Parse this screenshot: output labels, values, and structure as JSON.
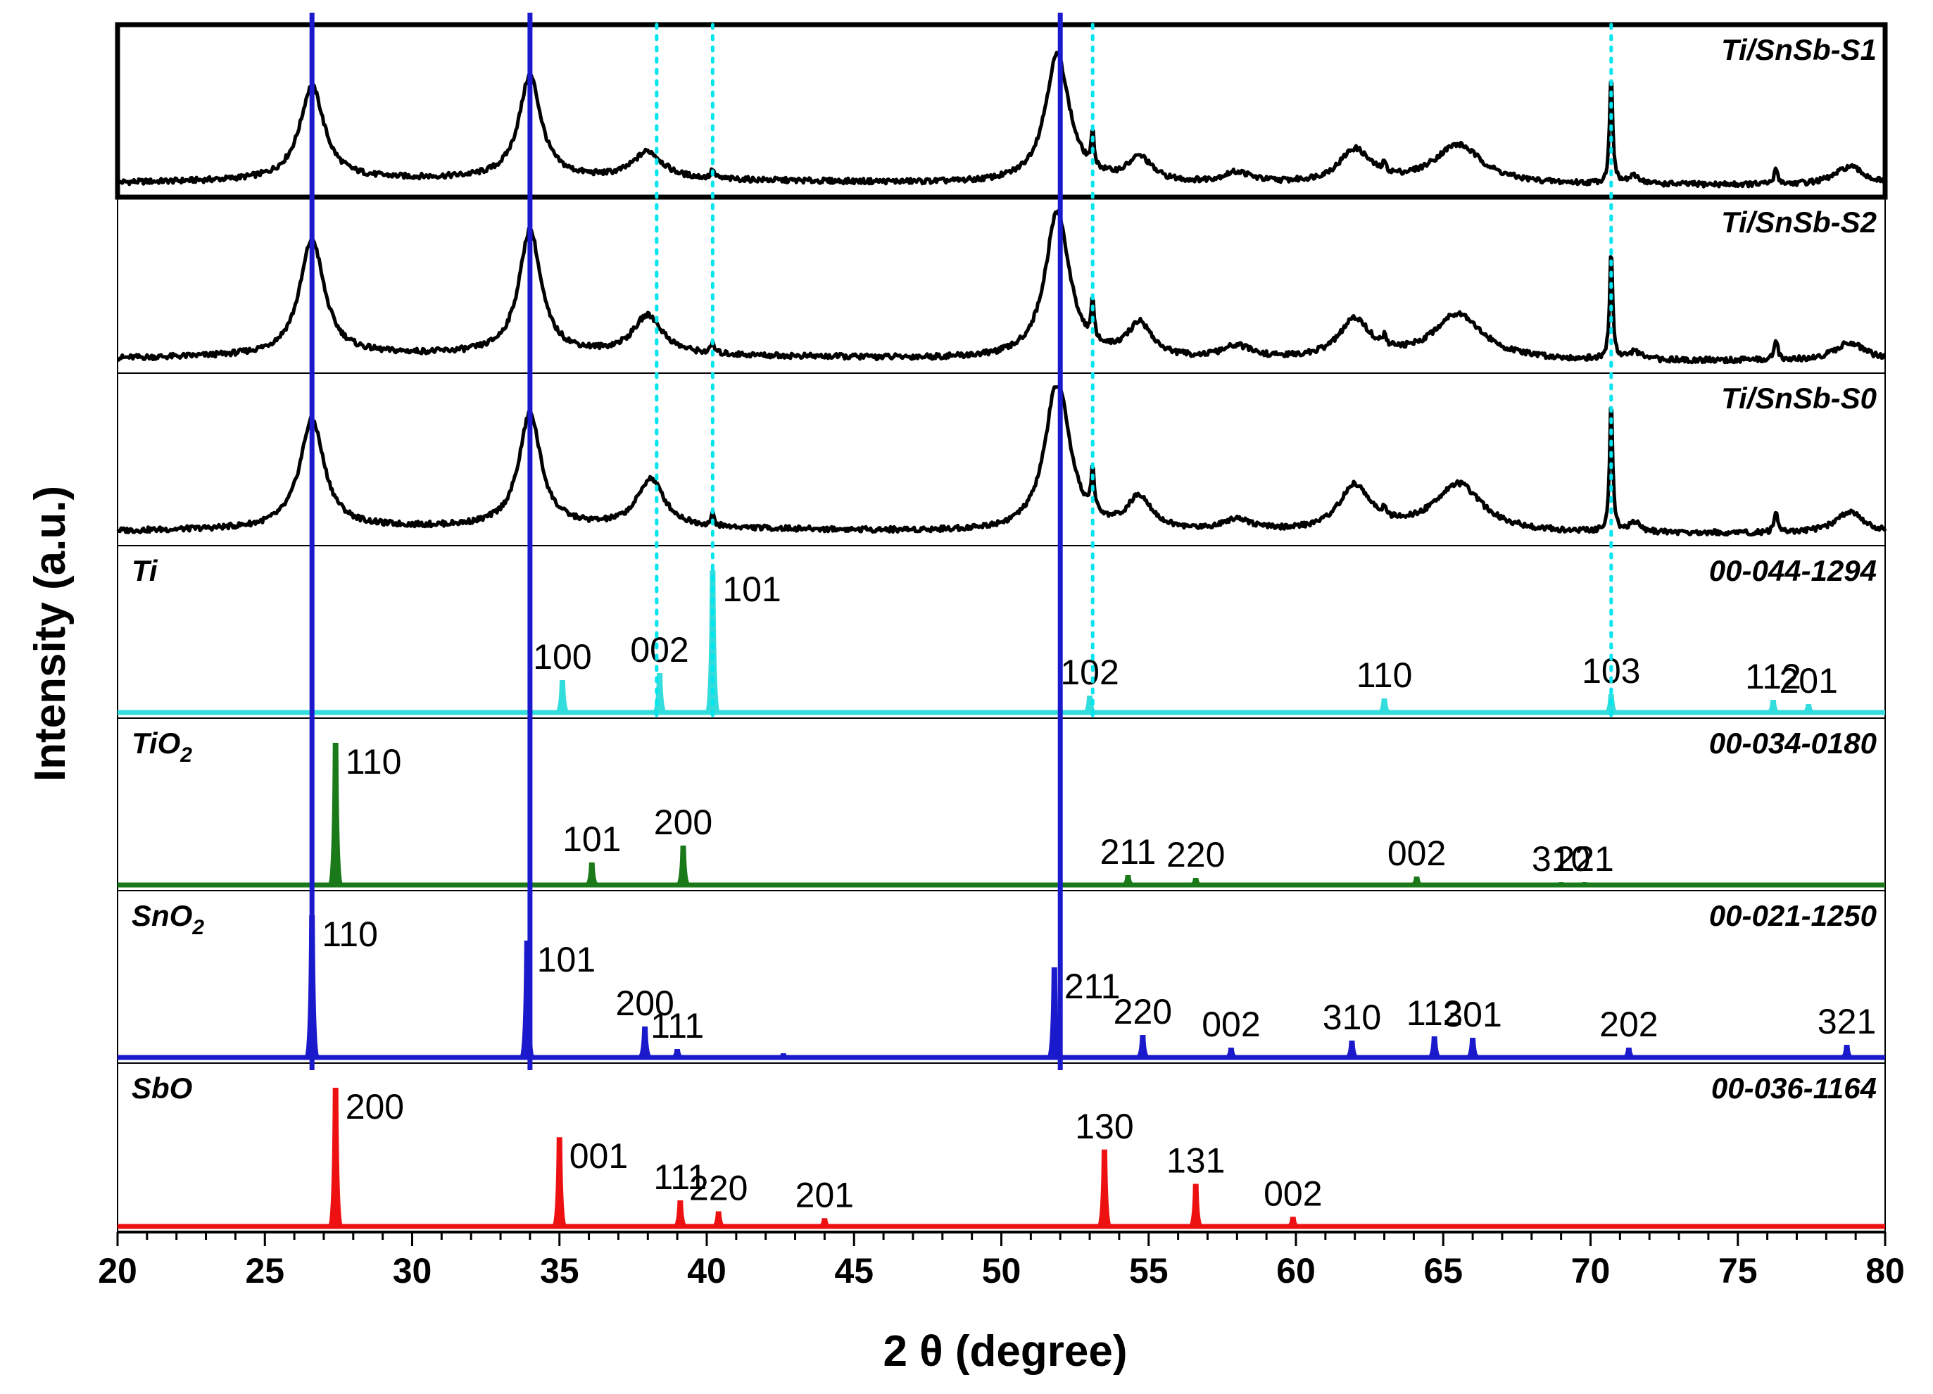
{
  "chart_data": {
    "type": "line",
    "title": "",
    "xlabel": "2 θ (degree)",
    "ylabel": "Intensity (a.u.)",
    "xlim": [
      20,
      80
    ],
    "x_ticks": [
      20,
      25,
      30,
      35,
      40,
      45,
      50,
      55,
      60,
      65,
      70,
      75,
      80
    ],
    "x_tick_labels": [
      "20",
      "25",
      "30",
      "35",
      "40",
      "45",
      "50",
      "55",
      "60",
      "65",
      "70",
      "75",
      "80"
    ],
    "reference_lines": {
      "solid": {
        "color": "#1a1acc",
        "x": [
          26.6,
          34.0,
          52.0
        ]
      },
      "dotted": {
        "color": "#00e5ee",
        "x": [
          38.3,
          40.2,
          53.1,
          70.7
        ]
      }
    },
    "measured": [
      {
        "name": "Ti/SnSb-S1",
        "color": "#000000",
        "peaks": [
          {
            "x": 26.6,
            "h": 0.62,
            "w": 1.0
          },
          {
            "x": 34.0,
            "h": 0.68,
            "w": 0.9
          },
          {
            "x": 38.0,
            "h": 0.18,
            "w": 1.2
          },
          {
            "x": 40.2,
            "h": 0.06,
            "w": 0.12
          },
          {
            "x": 51.9,
            "h": 0.85,
            "w": 1.0
          },
          {
            "x": 53.1,
            "h": 0.22,
            "w": 0.12
          },
          {
            "x": 54.7,
            "h": 0.16,
            "w": 1.0
          },
          {
            "x": 58.0,
            "h": 0.07,
            "w": 1.2
          },
          {
            "x": 62.0,
            "h": 0.22,
            "w": 1.3
          },
          {
            "x": 63.0,
            "h": 0.06,
            "w": 0.12
          },
          {
            "x": 65.5,
            "h": 0.26,
            "w": 2.0
          },
          {
            "x": 70.7,
            "h": 0.75,
            "w": 0.12
          },
          {
            "x": 71.5,
            "h": 0.05,
            "w": 0.5
          },
          {
            "x": 76.3,
            "h": 0.1,
            "w": 0.15
          },
          {
            "x": 78.8,
            "h": 0.12,
            "w": 1.2
          }
        ]
      },
      {
        "name": "Ti/SnSb-S2",
        "color": "#000000",
        "peaks": [
          {
            "x": 26.6,
            "h": 0.75,
            "w": 1.0
          },
          {
            "x": 34.0,
            "h": 0.8,
            "w": 0.9
          },
          {
            "x": 38.0,
            "h": 0.25,
            "w": 1.2
          },
          {
            "x": 40.2,
            "h": 0.07,
            "w": 0.12
          },
          {
            "x": 51.9,
            "h": 0.95,
            "w": 1.0
          },
          {
            "x": 53.1,
            "h": 0.24,
            "w": 0.12
          },
          {
            "x": 54.7,
            "h": 0.22,
            "w": 1.0
          },
          {
            "x": 58.0,
            "h": 0.08,
            "w": 1.2
          },
          {
            "x": 62.0,
            "h": 0.25,
            "w": 1.3
          },
          {
            "x": 63.0,
            "h": 0.06,
            "w": 0.12
          },
          {
            "x": 65.5,
            "h": 0.3,
            "w": 2.0
          },
          {
            "x": 70.7,
            "h": 0.72,
            "w": 0.12
          },
          {
            "x": 71.5,
            "h": 0.05,
            "w": 0.5
          },
          {
            "x": 76.3,
            "h": 0.12,
            "w": 0.15
          },
          {
            "x": 78.8,
            "h": 0.12,
            "w": 1.2
          }
        ]
      },
      {
        "name": "Ti/SnSb-S0",
        "color": "#000000",
        "peaks": [
          {
            "x": 26.6,
            "h": 0.72,
            "w": 1.0
          },
          {
            "x": 34.0,
            "h": 0.75,
            "w": 0.9
          },
          {
            "x": 38.1,
            "h": 0.32,
            "w": 1.1
          },
          {
            "x": 40.2,
            "h": 0.08,
            "w": 0.12
          },
          {
            "x": 51.9,
            "h": 1.0,
            "w": 1.0
          },
          {
            "x": 53.1,
            "h": 0.3,
            "w": 0.12
          },
          {
            "x": 54.7,
            "h": 0.22,
            "w": 1.0
          },
          {
            "x": 58.0,
            "h": 0.08,
            "w": 1.2
          },
          {
            "x": 62.0,
            "h": 0.3,
            "w": 1.3
          },
          {
            "x": 63.0,
            "h": 0.06,
            "w": 0.12
          },
          {
            "x": 65.5,
            "h": 0.32,
            "w": 2.0
          },
          {
            "x": 70.7,
            "h": 0.88,
            "w": 0.12
          },
          {
            "x": 71.5,
            "h": 0.06,
            "w": 0.5
          },
          {
            "x": 76.3,
            "h": 0.12,
            "w": 0.15
          },
          {
            "x": 78.8,
            "h": 0.14,
            "w": 1.2
          }
        ]
      }
    ],
    "references": [
      {
        "name": "Ti",
        "card": "00-044-1294",
        "color": "#33dddd",
        "peaks": [
          {
            "x": 35.1,
            "h": 0.22,
            "hkl": "100"
          },
          {
            "x": 38.4,
            "h": 0.27,
            "hkl": "002"
          },
          {
            "x": 40.2,
            "h": 1.0,
            "hkl": "101"
          },
          {
            "x": 53.0,
            "h": 0.11,
            "hkl": "102"
          },
          {
            "x": 63.0,
            "h": 0.09,
            "hkl": "110"
          },
          {
            "x": 70.7,
            "h": 0.12,
            "hkl": "103"
          },
          {
            "x": 76.2,
            "h": 0.08,
            "hkl": "112"
          },
          {
            "x": 77.4,
            "h": 0.05,
            "hkl": "201"
          }
        ]
      },
      {
        "name": "TiO2",
        "card": "00-034-0180",
        "color": "#1a7a1a",
        "peaks": [
          {
            "x": 27.4,
            "h": 1.0,
            "hkl": "110"
          },
          {
            "x": 36.1,
            "h": 0.15,
            "hkl": "101"
          },
          {
            "x": 39.2,
            "h": 0.27,
            "hkl": "200"
          },
          {
            "x": 54.3,
            "h": 0.06,
            "hkl": "211"
          },
          {
            "x": 56.6,
            "h": 0.04,
            "hkl": "220"
          },
          {
            "x": 64.1,
            "h": 0.05,
            "hkl": "002"
          },
          {
            "x": 69.0,
            "h": 0.01,
            "hkl": "310"
          },
          {
            "x": 69.8,
            "h": 0.01,
            "hkl": "221"
          }
        ]
      },
      {
        "name": "SnO2",
        "card": "00-021-1250",
        "color": "#1a1acc",
        "peaks": [
          {
            "x": 26.6,
            "h": 1.0,
            "hkl": "110"
          },
          {
            "x": 33.9,
            "h": 0.82,
            "hkl": "101"
          },
          {
            "x": 37.9,
            "h": 0.21,
            "hkl": "200"
          },
          {
            "x": 39.0,
            "h": 0.05,
            "hkl": "111"
          },
          {
            "x": 42.6,
            "h": 0.02,
            "hkl": ""
          },
          {
            "x": 51.8,
            "h": 0.63,
            "hkl": "211"
          },
          {
            "x": 54.8,
            "h": 0.15,
            "hkl": "220"
          },
          {
            "x": 57.8,
            "h": 0.06,
            "hkl": "002"
          },
          {
            "x": 61.9,
            "h": 0.11,
            "hkl": "310"
          },
          {
            "x": 64.7,
            "h": 0.14,
            "hkl": "112"
          },
          {
            "x": 66.0,
            "h": 0.13,
            "hkl": "301"
          },
          {
            "x": 71.3,
            "h": 0.06,
            "hkl": "202"
          },
          {
            "x": 78.7,
            "h": 0.08,
            "hkl": "321"
          }
        ]
      },
      {
        "name": "SbO",
        "card": "00-036-1164",
        "color": "#ee1111",
        "peaks": [
          {
            "x": 27.4,
            "h": 1.0,
            "hkl": "200"
          },
          {
            "x": 35.0,
            "h": 0.64,
            "hkl": "001"
          },
          {
            "x": 39.1,
            "h": 0.18,
            "hkl": "111"
          },
          {
            "x": 40.4,
            "h": 0.1,
            "hkl": "220"
          },
          {
            "x": 44.0,
            "h": 0.05,
            "hkl": "201"
          },
          {
            "x": 53.5,
            "h": 0.55,
            "hkl": "130"
          },
          {
            "x": 56.6,
            "h": 0.3,
            "hkl": "131"
          },
          {
            "x": 59.9,
            "h": 0.06,
            "hkl": "002"
          }
        ]
      }
    ]
  }
}
